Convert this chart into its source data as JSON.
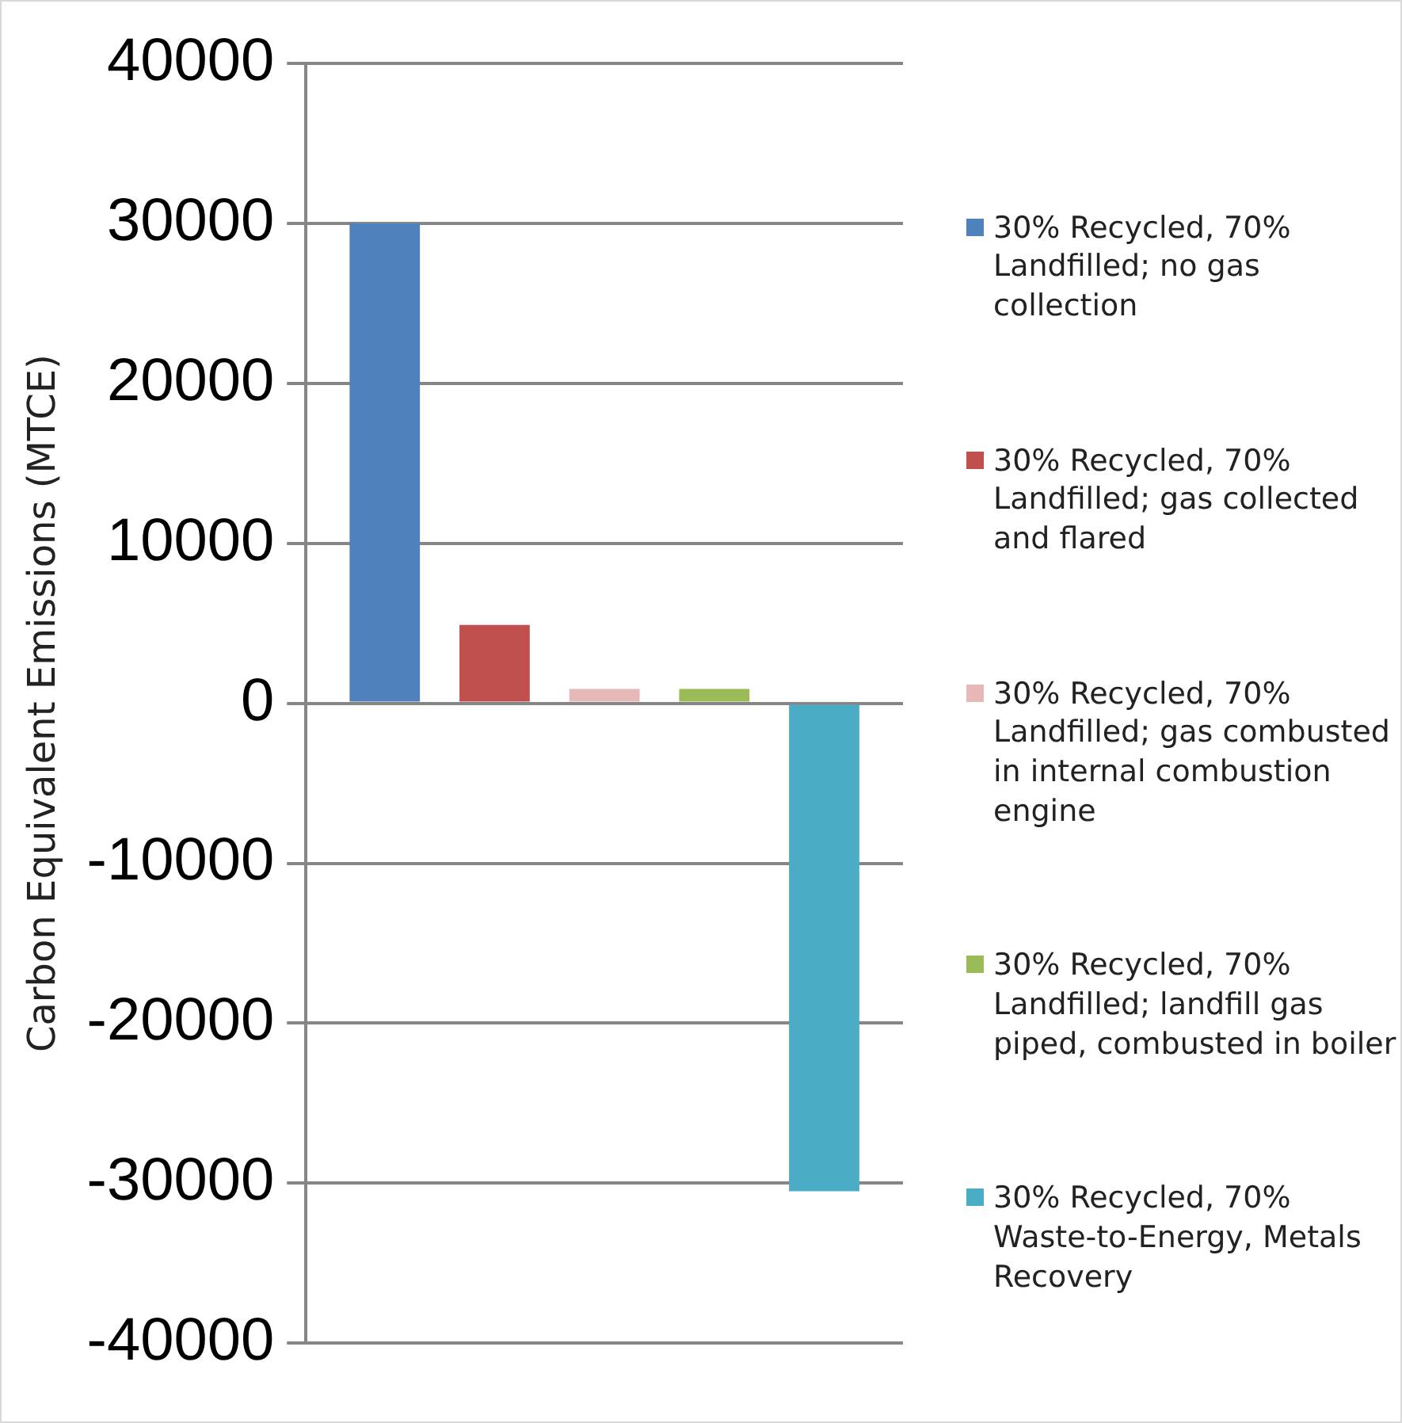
{
  "chart_data": {
    "type": "bar",
    "ylabel": "Carbon Equivalent Emissions (MTCE)",
    "categories": [
      null
    ],
    "series": [
      {
        "name": "30% Recycled, 70% Landfilled; no gas collection",
        "color": "#4f81bd",
        "values": [
          30000
        ]
      },
      {
        "name": "30% Recycled, 70% Landfilled; gas collected and flared",
        "color": "#c0504d",
        "values": [
          4900
        ]
      },
      {
        "name": "30% Recycled, 70% Landfilled; gas combusted in internal combustion engine",
        "color": "#e6b9b8",
        "values": [
          900
        ]
      },
      {
        "name": "30% Recycled, 70% Landfilled; landfill gas piped, combusted in boiler",
        "color": "#9bbb59",
        "values": [
          900
        ]
      },
      {
        "name": "30% Recycled, 70% Waste-to-Energy, Metals Recovery",
        "color": "#4bacc6",
        "values": [
          -30500
        ]
      }
    ],
    "ylim": [
      -40000,
      40000
    ],
    "yticks": [
      -40000,
      -30000,
      -20000,
      -10000,
      0,
      10000,
      20000,
      30000,
      40000
    ],
    "grid": "y",
    "legend": "right"
  }
}
